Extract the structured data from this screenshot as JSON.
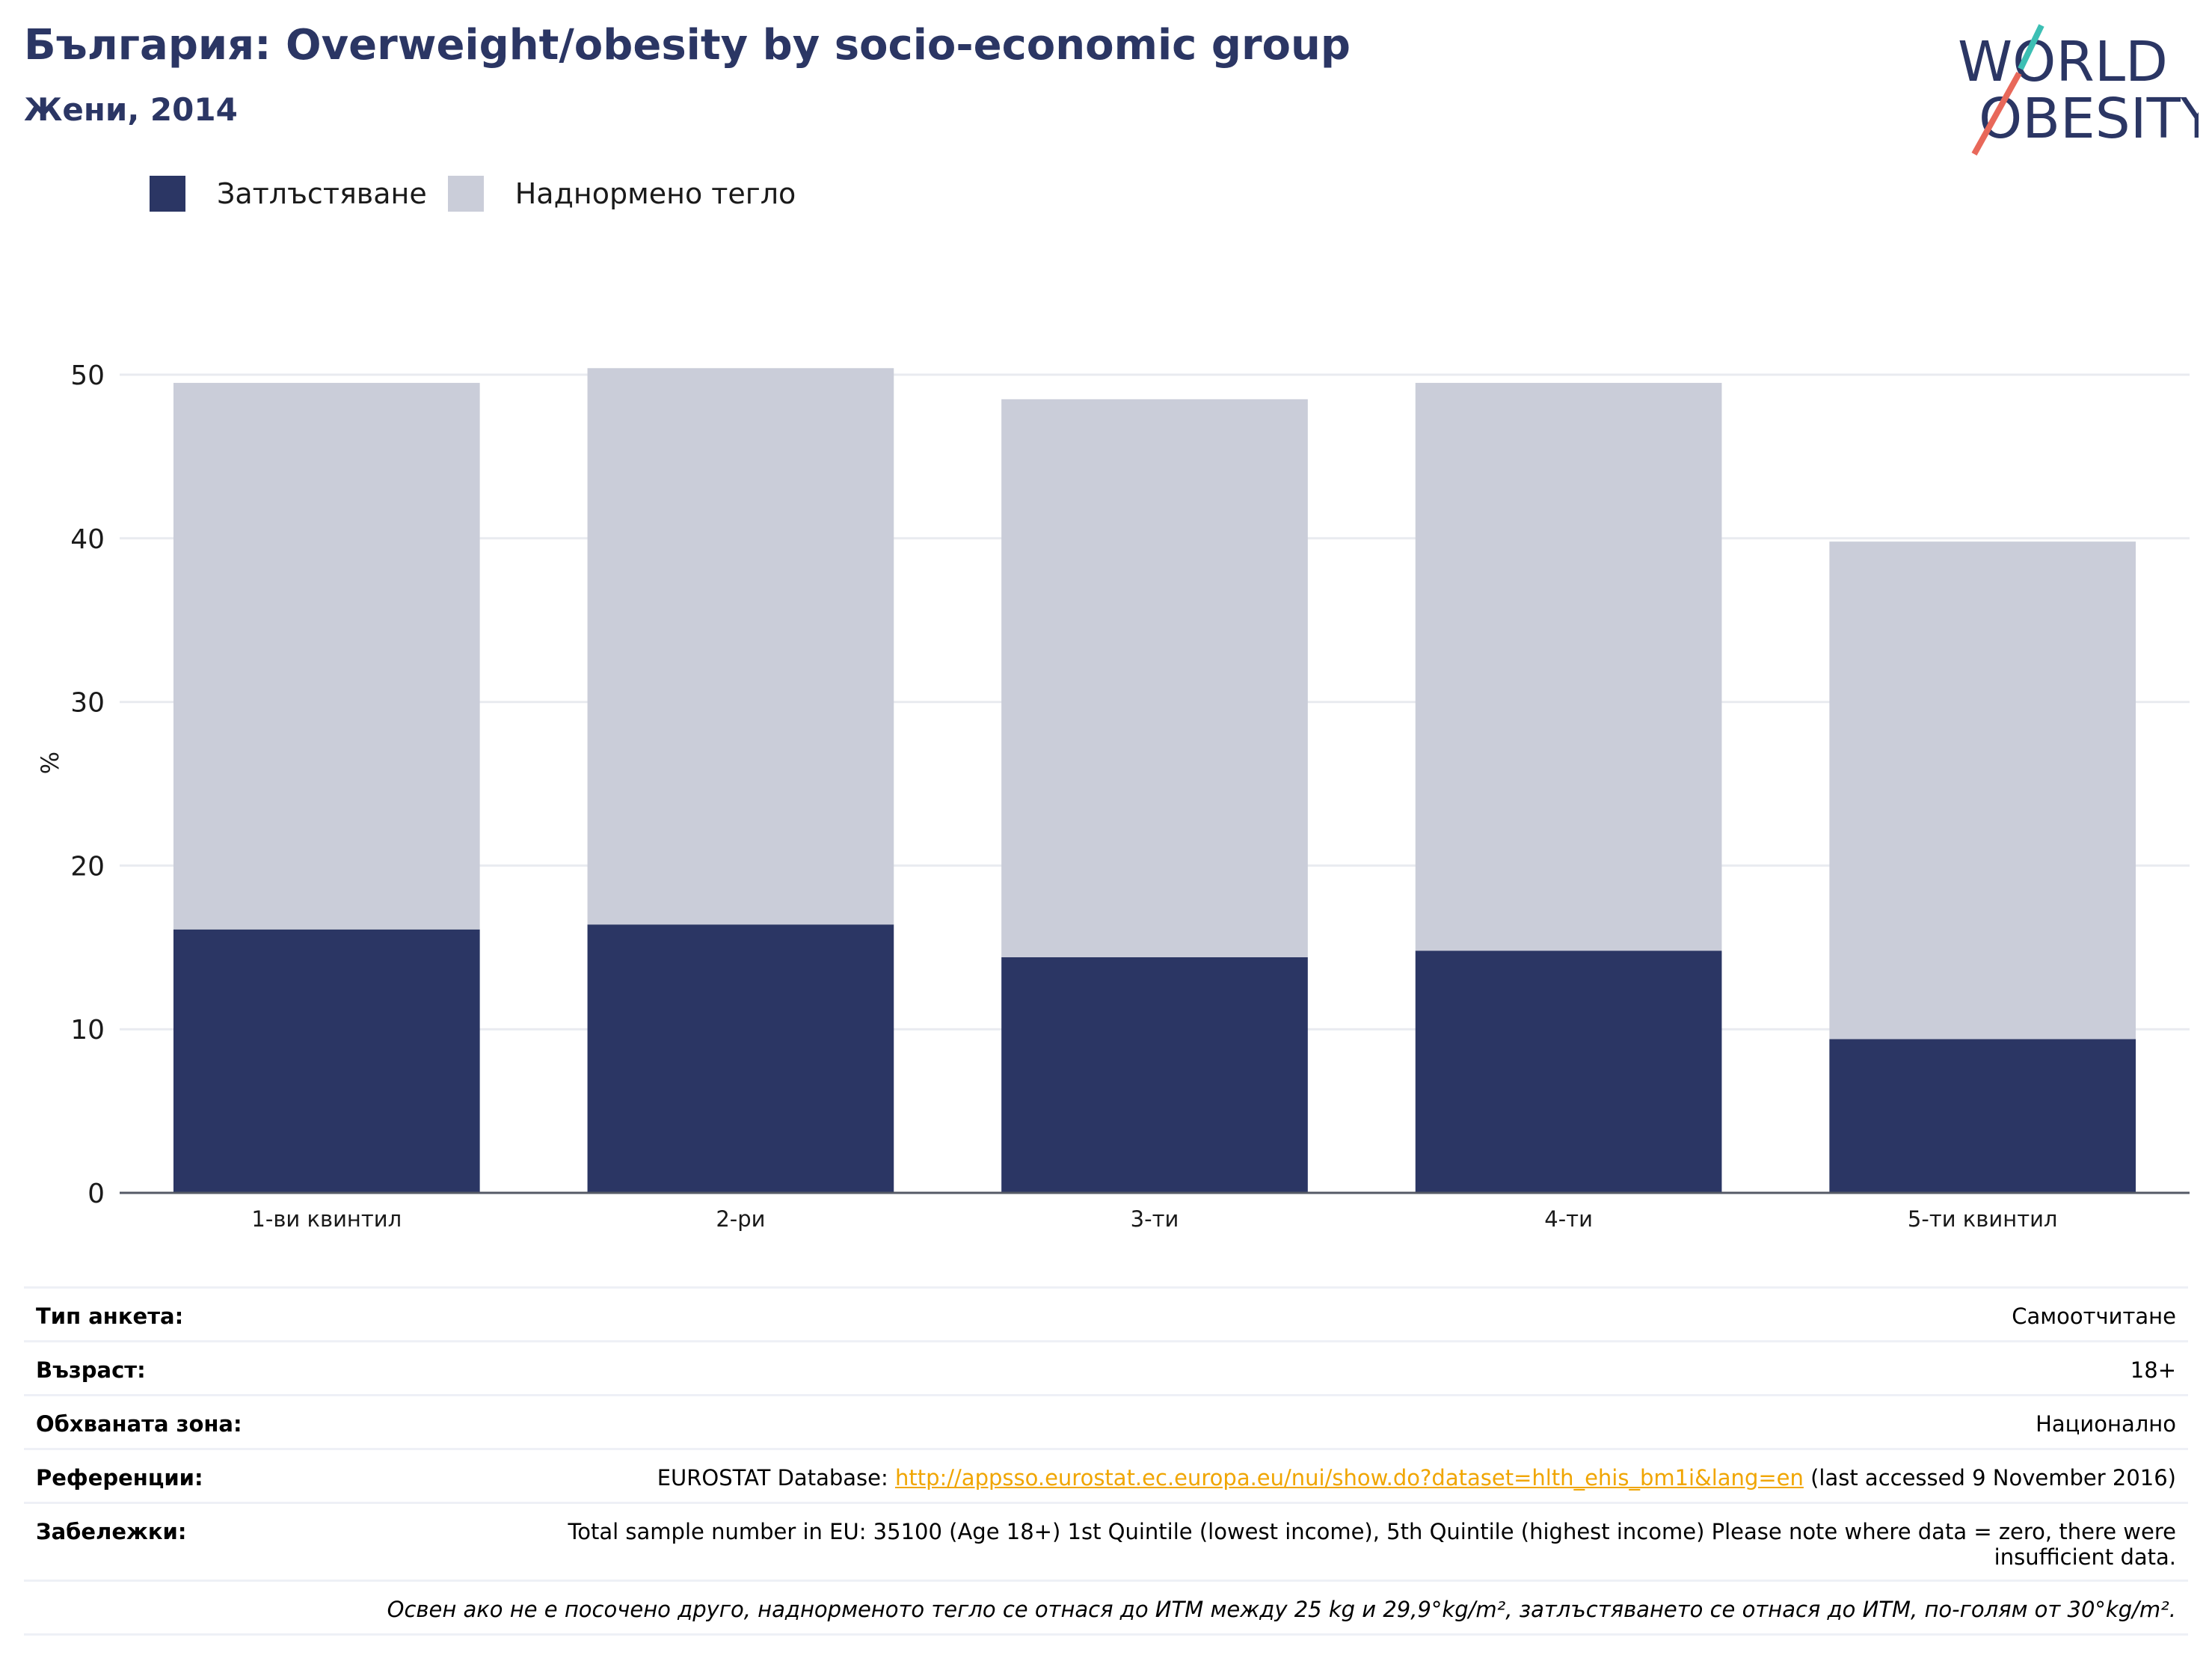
{
  "title": "България: Overweight/obesity by socio-economic group",
  "subtitle": "Жени, 2014",
  "logo": {
    "line1": "WORLD",
    "line2": "OBESITY"
  },
  "colors": {
    "obesity": "#2b3664",
    "overweight": "#cacdd9",
    "title": "#2b3664",
    "link": "#f0a500"
  },
  "chart_data": {
    "type": "bar",
    "stacked": true,
    "categories": [
      "1-ви квинтил",
      "2-ри",
      "3-ти",
      "4-ти",
      "5-ти квинтил"
    ],
    "series": [
      {
        "name": "Затлъстяване",
        "values": [
          16.1,
          16.4,
          14.4,
          14.8,
          9.4
        ]
      },
      {
        "name": "Наднормено тегло",
        "values": [
          33.4,
          34.0,
          34.1,
          34.7,
          30.4
        ]
      }
    ],
    "totals": [
      49.5,
      50.4,
      48.5,
      49.5,
      39.8
    ],
    "ylabel": "%",
    "yticks": [
      0,
      10,
      20,
      30,
      40,
      50
    ],
    "ylim": [
      0,
      55
    ],
    "grid": true,
    "legend": "top-left"
  },
  "info": {
    "survey_type": {
      "label": "Тип анкета:",
      "value": "Самоотчитане"
    },
    "age": {
      "label": "Възраст:",
      "value": "18+"
    },
    "area": {
      "label": "Обхваната зона:",
      "value": "Национално"
    },
    "references": {
      "label": "Референции:",
      "prefix": "EUROSTAT Database: ",
      "link": "http://appsso.eurostat.ec.europa.eu/nui/show.do?dataset=hlth_ehis_bm1i&lang=en",
      "suffix": " (last accessed 9 November 2016)"
    },
    "notes": {
      "label": "Забележки:",
      "value": "Total sample number in EU: 35100 (Age 18+) 1st Quintile (lowest income), 5th Quintile (highest income) Please note where data = zero, there were insufficient data."
    },
    "footnote": "Освен ако не е посочено друго, наднорменото тегло се отнася до ИТМ между 25 kg и 29,9°kg/m², затлъстяването се отнася до ИТМ, по-голям от 30°kg/m²."
  }
}
